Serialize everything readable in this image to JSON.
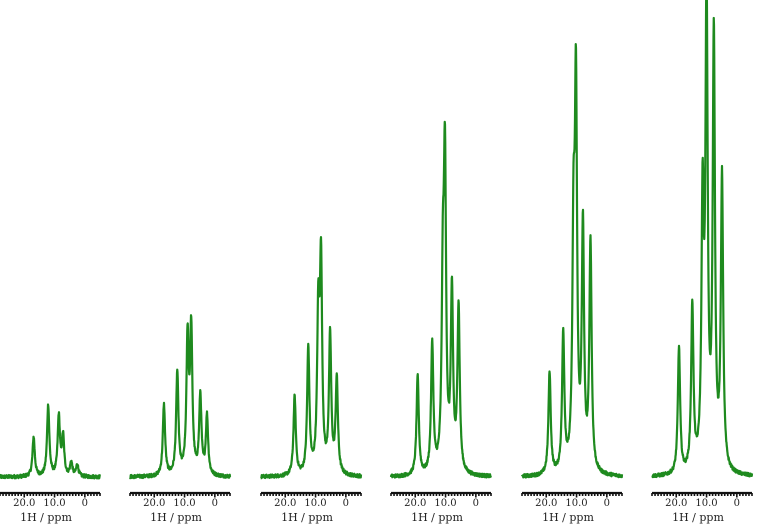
{
  "figure": {
    "spectrum_color": "#1e8a1e",
    "axis_color": "#111111"
  },
  "chart_data": [
    {
      "type": "line",
      "xlabel": "1H / ppm",
      "x_ticks": [
        20.0,
        10.0,
        0
      ],
      "tick_labels": [
        "20.0",
        "10.0",
        "0"
      ],
      "xlim": [
        28,
        -5
      ],
      "ylim": [
        0,
        100
      ],
      "baseline": 8,
      "peaks": [
        {
          "ppm": 16.9,
          "height": 10,
          "width": 0.45
        },
        {
          "ppm": 12.1,
          "height": 18,
          "width": 0.45
        },
        {
          "ppm": 8.6,
          "height": 15,
          "width": 0.45
        },
        {
          "ppm": 7.2,
          "height": 10,
          "width": 0.45
        },
        {
          "ppm": 4.5,
          "height": 3.5,
          "width": 0.45
        },
        {
          "ppm": 2.5,
          "height": 3,
          "width": 0.45
        }
      ]
    },
    {
      "type": "line",
      "xlabel": "1H / ppm",
      "x_ticks": [
        20.0,
        10.0,
        0
      ],
      "tick_labels": [
        "20.0",
        "10.0",
        "0"
      ],
      "xlim": [
        28,
        -5
      ],
      "ylim": [
        0,
        100
      ],
      "baseline": 8,
      "peaks": [
        {
          "ppm": 16.8,
          "height": 18,
          "width": 0.45
        },
        {
          "ppm": 12.4,
          "height": 26,
          "width": 0.45
        },
        {
          "ppm": 9.0,
          "height": 34,
          "width": 0.45
        },
        {
          "ppm": 7.8,
          "height": 36,
          "width": 0.45
        },
        {
          "ppm": 4.8,
          "height": 20,
          "width": 0.45
        },
        {
          "ppm": 2.6,
          "height": 15,
          "width": 0.45
        }
      ]
    },
    {
      "type": "line",
      "xlabel": "1H / ppm",
      "x_ticks": [
        20.0,
        10.0,
        0
      ],
      "tick_labels": [
        "20.0",
        "10.0",
        "0"
      ],
      "xlim": [
        28,
        -5
      ],
      "ylim": [
        0,
        100
      ],
      "baseline": 8,
      "peaks": [
        {
          "ppm": 16.9,
          "height": 20,
          "width": 0.45
        },
        {
          "ppm": 12.4,
          "height": 32,
          "width": 0.45
        },
        {
          "ppm": 9.1,
          "height": 38,
          "width": 0.45
        },
        {
          "ppm": 8.2,
          "height": 52,
          "width": 0.45
        },
        {
          "ppm": 5.2,
          "height": 35,
          "width": 0.45
        },
        {
          "ppm": 3.0,
          "height": 24,
          "width": 0.45
        }
      ]
    },
    {
      "type": "line",
      "xlabel": "1H / ppm",
      "x_ticks": [
        20.0,
        10.0,
        0
      ],
      "tick_labels": [
        "20.0",
        "10.0",
        "0"
      ],
      "xlim": [
        28,
        -5
      ],
      "ylim": [
        0,
        100
      ],
      "baseline": 8,
      "peaks": [
        {
          "ppm": 19.2,
          "height": 25,
          "width": 0.45
        },
        {
          "ppm": 14.4,
          "height": 33,
          "width": 0.45
        },
        {
          "ppm": 10.9,
          "height": 43,
          "width": 0.45
        },
        {
          "ppm": 10.2,
          "height": 75,
          "width": 0.45
        },
        {
          "ppm": 7.9,
          "height": 45,
          "width": 0.45
        },
        {
          "ppm": 5.7,
          "height": 42,
          "width": 0.45
        }
      ]
    },
    {
      "type": "line",
      "xlabel": "1H / ppm",
      "x_ticks": [
        20.0,
        10.0,
        0
      ],
      "tick_labels": [
        "20.0",
        "10.0",
        "0"
      ],
      "xlim": [
        28,
        -5
      ],
      "ylim": [
        0,
        100
      ],
      "baseline": 8,
      "peaks": [
        {
          "ppm": 18.9,
          "height": 26,
          "width": 0.45
        },
        {
          "ppm": 14.4,
          "height": 35,
          "width": 0.45
        },
        {
          "ppm": 11.0,
          "height": 55,
          "width": 0.45
        },
        {
          "ppm": 10.2,
          "height": 93,
          "width": 0.45
        },
        {
          "ppm": 7.9,
          "height": 61,
          "width": 0.45
        },
        {
          "ppm": 5.4,
          "height": 58,
          "width": 0.45
        }
      ]
    },
    {
      "type": "line",
      "xlabel": "1H / ppm",
      "x_ticks": [
        20.0,
        10.0,
        0
      ],
      "tick_labels": [
        "20.0",
        "10.0",
        "0"
      ],
      "xlim": [
        28,
        -5
      ],
      "ylim": [
        0,
        100
      ],
      "baseline": 8,
      "peaks": [
        {
          "ppm": 19.1,
          "height": 32,
          "width": 0.45
        },
        {
          "ppm": 14.7,
          "height": 42,
          "width": 0.45
        },
        {
          "ppm": 11.3,
          "height": 65,
          "width": 0.45
        },
        {
          "ppm": 10.0,
          "height": 118,
          "width": 0.45
        },
        {
          "ppm": 7.6,
          "height": 109,
          "width": 0.45
        },
        {
          "ppm": 4.9,
          "height": 74,
          "width": 0.45
        }
      ]
    }
  ]
}
